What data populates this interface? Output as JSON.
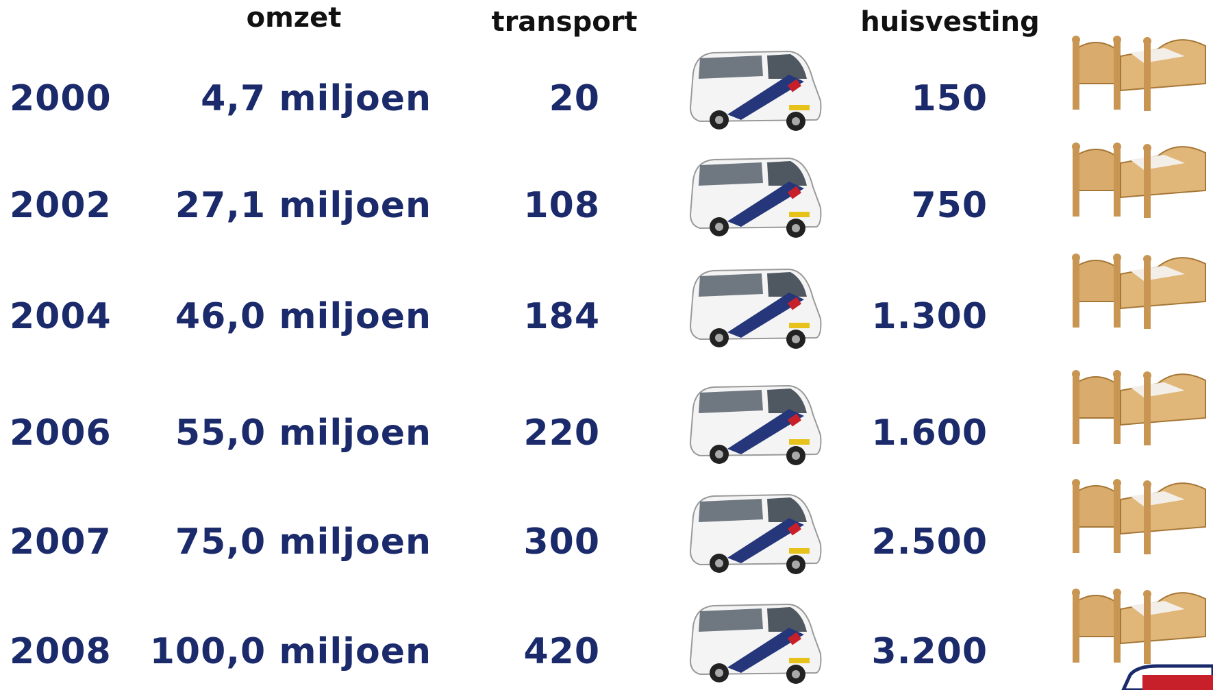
{
  "headers": {
    "omzet": "omzet",
    "transport": "transport",
    "huisvesting": "huisvesting"
  },
  "rows": [
    {
      "year": "2000",
      "omzet": "4,7 miljoen",
      "transport": "20",
      "huisvesting": "150"
    },
    {
      "year": "2002",
      "omzet": "27,1 miljoen",
      "transport": "108",
      "huisvesting": "750"
    },
    {
      "year": "2004",
      "omzet": "46,0 miljoen",
      "transport": "184",
      "huisvesting": "1.300"
    },
    {
      "year": "2006",
      "omzet": "55,0 miljoen",
      "transport": "220",
      "huisvesting": "1.600"
    },
    {
      "year": "2007",
      "omzet": "75,0 miljoen",
      "transport": "300",
      "huisvesting": "2.500"
    },
    {
      "year": "2008",
      "omzet": "100,0 miljoen",
      "transport": "420",
      "huisvesting": "3.200"
    }
  ]
}
